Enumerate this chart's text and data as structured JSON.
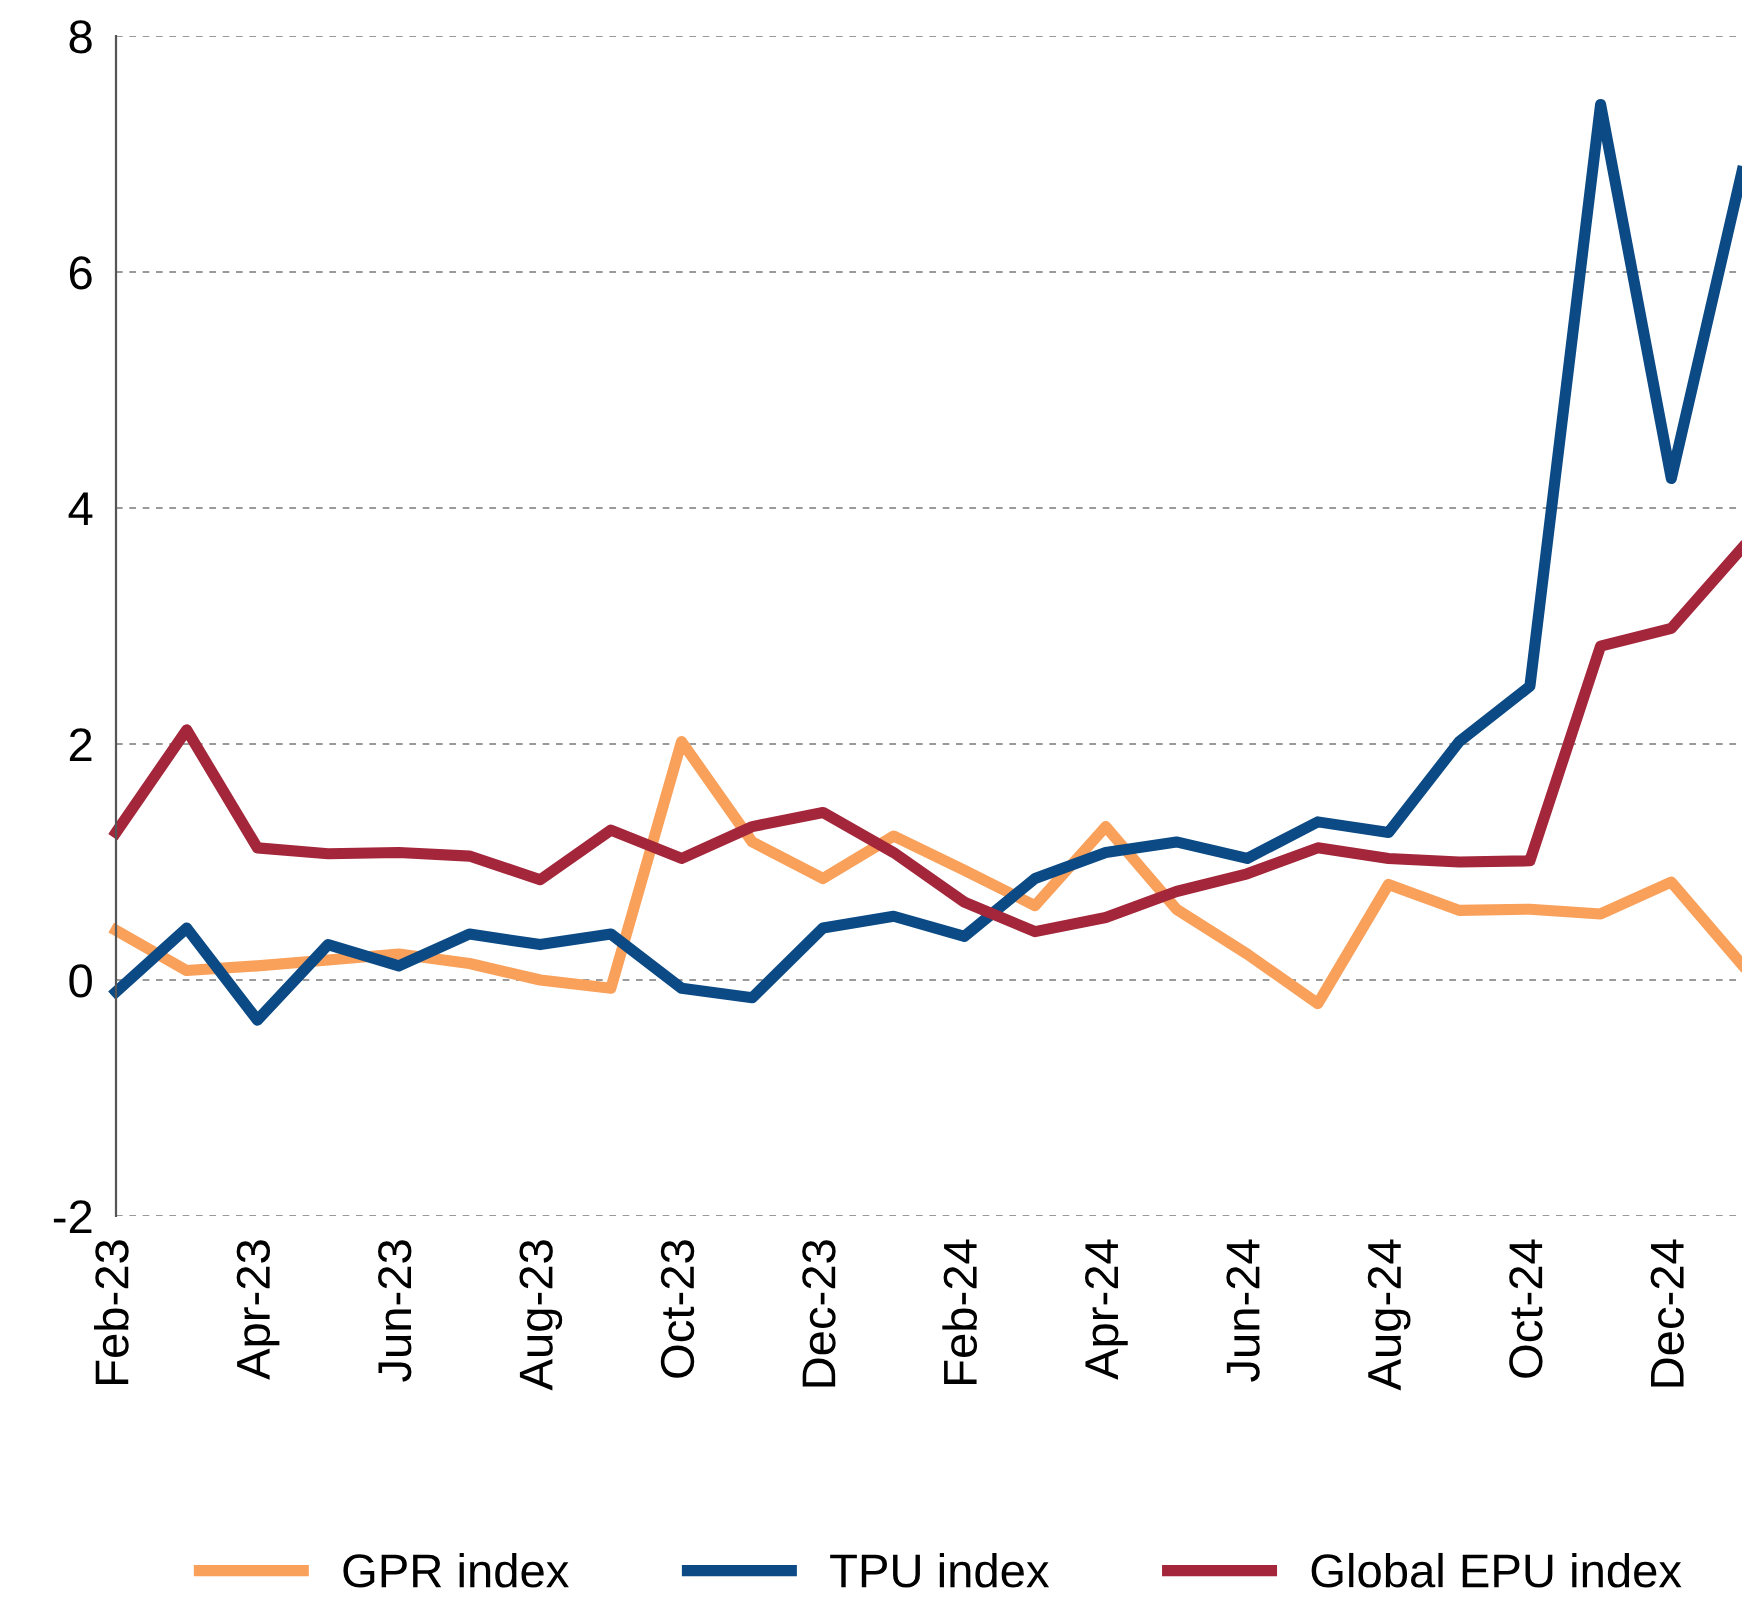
{
  "chart_data": {
    "type": "line",
    "categories": [
      "Feb-23",
      null,
      "Apr-23",
      null,
      "Jun-23",
      null,
      "Aug-23",
      null,
      "Oct-23",
      null,
      "Dec-23",
      null,
      "Feb-24",
      null,
      "Apr-24",
      null,
      "Jun-24",
      null,
      "Aug-24",
      null,
      "Oct-24",
      null,
      "Dec-24",
      null
    ],
    "series": [
      {
        "name": "GPR index",
        "color": "#f9a05a",
        "values": [
          0.42,
          0.08,
          0.12,
          0.17,
          0.22,
          0.14,
          0.0,
          -0.07,
          2.02,
          1.17,
          0.86,
          1.22,
          0.93,
          0.63,
          1.3,
          0.6,
          0.22,
          -0.2,
          0.81,
          0.59,
          0.6,
          0.56,
          0.83,
          0.13
        ]
      },
      {
        "name": "TPU index",
        "color": "#0b4a85",
        "values": [
          -0.1,
          0.44,
          -0.34,
          0.3,
          0.12,
          0.39,
          0.3,
          0.39,
          -0.07,
          -0.15,
          0.44,
          0.54,
          0.37,
          0.86,
          1.08,
          1.17,
          1.03,
          1.34,
          1.25,
          2.02,
          2.49,
          7.42,
          4.25,
          6.85
        ]
      },
      {
        "name": "Global EPU index",
        "color": "#a3263a",
        "values": [
          1.25,
          2.12,
          1.12,
          1.07,
          1.08,
          1.05,
          0.85,
          1.27,
          1.03,
          1.3,
          1.42,
          1.08,
          0.66,
          0.41,
          0.53,
          0.75,
          0.9,
          1.12,
          1.03,
          1.0,
          1.01,
          2.83,
          2.98,
          3.66
        ]
      }
    ],
    "ylim": [
      -2,
      8
    ],
    "yticks": [
      -2,
      0,
      2,
      4,
      6,
      8
    ],
    "grid": "y",
    "legend": "bottom",
    "marker": "none",
    "line_style": "solid"
  }
}
